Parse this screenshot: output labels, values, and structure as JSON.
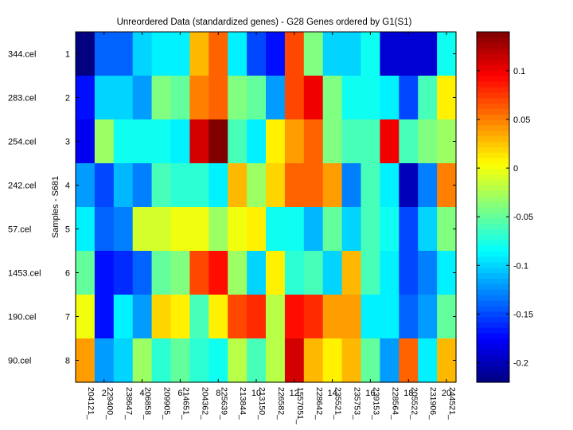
{
  "chart_data": {
    "type": "heatmap",
    "title": "Unreordered Data (standardized genes) - G28 Genes ordered by G1(S1)",
    "ylabel": "Samples - S681",
    "row_labels": [
      "344.cel",
      "283.cel",
      "254.cel",
      "242.cel",
      "57.cel",
      "1453.cel",
      "190.cel",
      "90.cel"
    ],
    "row_index_labels": [
      "1",
      "2",
      "3",
      "4",
      "5",
      "6",
      "7",
      "8"
    ],
    "col_index_ticks": [
      "2",
      "4",
      "6",
      "8",
      "10",
      "12",
      "14",
      "16",
      "18",
      "20"
    ],
    "col_labels": [
      "204121_",
      "229400_",
      "238647_",
      "206858_",
      "209905_",
      "214651_",
      "204362_",
      "225639_",
      "213844_",
      "213150_",
      "226582_",
      "1557051_",
      "228642_",
      "235521_",
      "235753_",
      "239153_",
      "228564_",
      "205522_",
      "231906_",
      "244521_"
    ],
    "colorbar": {
      "colormap": "jet",
      "range": [
        -0.22,
        0.14
      ],
      "ticks": [
        "0.1",
        "0.05",
        "0",
        "-0.05",
        "-0.1",
        "-0.15",
        "-0.2"
      ],
      "tick_values": [
        0.1,
        0.05,
        0,
        -0.05,
        -0.1,
        -0.15,
        -0.2
      ]
    },
    "values": [
      [
        -0.22,
        -0.14,
        -0.14,
        -0.1,
        -0.09,
        -0.09,
        0.03,
        0.06,
        -0.09,
        -0.15,
        -0.17,
        0.07,
        -0.04,
        -0.1,
        -0.1,
        -0.08,
        -0.19,
        -0.19,
        -0.19,
        -0.08
      ],
      [
        -0.17,
        -0.1,
        -0.1,
        -0.12,
        -0.04,
        -0.05,
        0.05,
        0.06,
        -0.04,
        -0.05,
        -0.12,
        0.07,
        0.1,
        -0.04,
        -0.08,
        -0.08,
        -0.09,
        -0.15,
        -0.06,
        0.01
      ],
      [
        -0.18,
        -0.03,
        -0.08,
        -0.08,
        -0.08,
        -0.09,
        0.11,
        0.14,
        -0.06,
        -0.09,
        0.01,
        0.04,
        0.06,
        -0.04,
        -0.06,
        -0.06,
        0.1,
        -0.06,
        -0.04,
        -0.03
      ],
      [
        -0.12,
        -0.15,
        -0.11,
        -0.13,
        -0.06,
        -0.07,
        -0.07,
        -0.09,
        0.03,
        -0.03,
        0.02,
        0.06,
        0.06,
        0.04,
        -0.13,
        -0.06,
        -0.09,
        -0.2,
        -0.13,
        0.05
      ],
      [
        -0.09,
        -0.14,
        -0.13,
        -0.01,
        -0.01,
        0.0,
        0.0,
        -0.03,
        0.0,
        0.01,
        -0.08,
        -0.08,
        -0.11,
        -0.05,
        -0.1,
        -0.06,
        -0.08,
        -0.15,
        -0.1,
        -0.04
      ],
      [
        -0.05,
        -0.17,
        -0.16,
        -0.14,
        -0.05,
        -0.04,
        0.07,
        0.09,
        -0.03,
        -0.1,
        0.01,
        -0.07,
        -0.06,
        -0.1,
        0.03,
        -0.06,
        -0.09,
        -0.15,
        -0.13,
        -0.09
      ],
      [
        0.0,
        -0.17,
        -0.09,
        -0.12,
        0.02,
        0.01,
        -0.06,
        0.01,
        0.07,
        0.08,
        -0.02,
        0.09,
        0.08,
        0.04,
        0.04,
        -0.09,
        -0.09,
        -0.14,
        -0.12,
        -0.05
      ],
      [
        0.04,
        -0.12,
        -0.1,
        -0.03,
        -0.07,
        -0.05,
        -0.07,
        -0.08,
        -0.02,
        -0.06,
        -0.02,
        0.11,
        0.03,
        0.01,
        0.03,
        -0.05,
        -0.12,
        0.06,
        -0.09,
        0.03
      ]
    ]
  }
}
